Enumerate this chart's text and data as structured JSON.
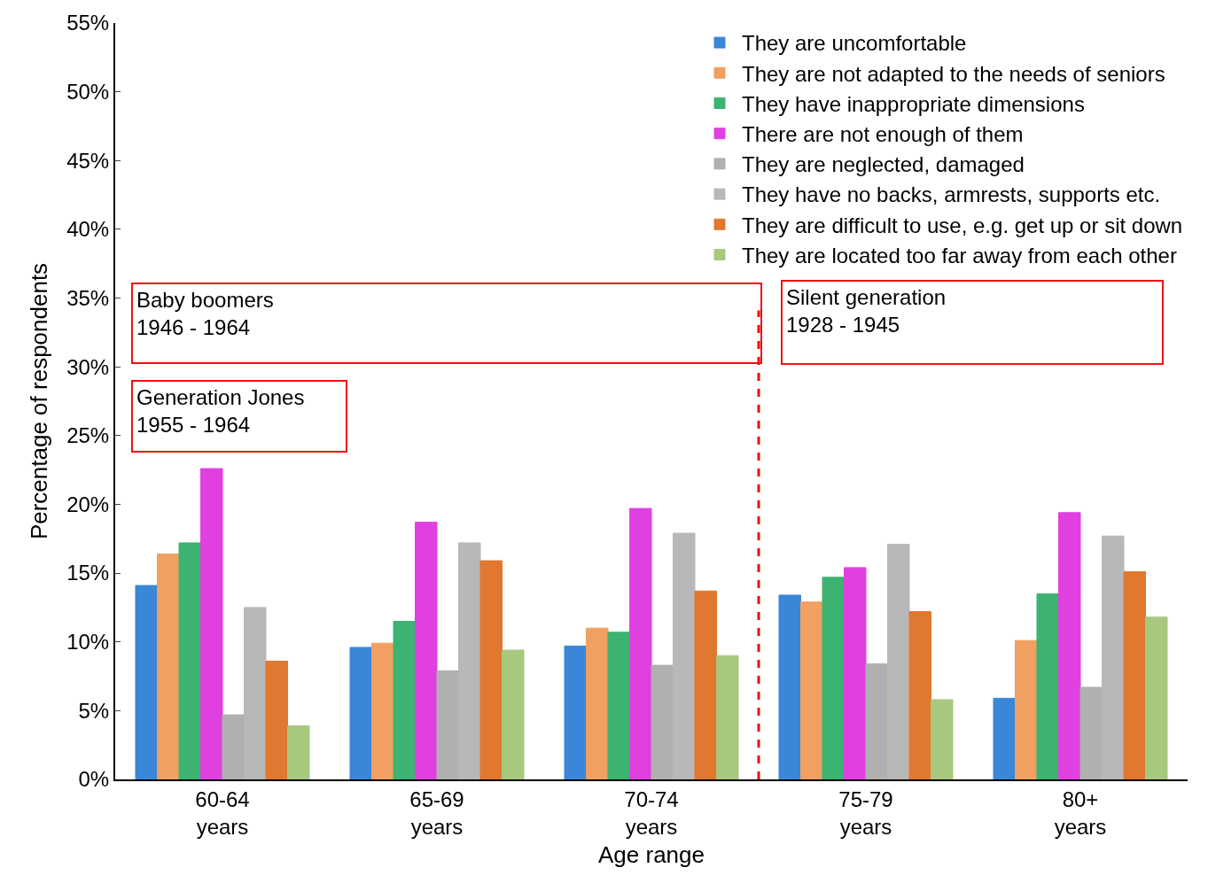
{
  "chart_data": {
    "type": "bar",
    "xlabel": "Age range",
    "ylabel": "Percentage of respondents",
    "categories": [
      "60-64\nyears",
      "65-69\nyears",
      "70-74\nyears",
      "75-79\nyears",
      "80+\nyears"
    ],
    "series": [
      {
        "name": "They are uncomfortable",
        "color": "#3a86d8",
        "values": [
          14.1,
          9.6,
          9.7,
          13.4,
          5.9
        ]
      },
      {
        "name": "They are not adapted to the needs of seniors",
        "color": "#f0a060",
        "values": [
          16.4,
          9.9,
          11.0,
          12.9,
          10.1
        ]
      },
      {
        "name": "They have inappropriate dimensions",
        "color": "#3cb371",
        "values": [
          17.2,
          11.5,
          10.7,
          14.7,
          13.5
        ]
      },
      {
        "name": "There are not enough of them",
        "color": "#e040e0",
        "values": [
          22.6,
          18.7,
          19.7,
          15.4,
          19.4
        ]
      },
      {
        "name": "They are neglected, damaged",
        "color": "#b0b0b0",
        "values": [
          4.7,
          7.9,
          8.3,
          8.4,
          6.7
        ]
      },
      {
        "name": "They have no backs, armrests, supports etc.",
        "color": "#b8b8b8",
        "values": [
          12.5,
          17.2,
          17.9,
          17.1,
          17.7
        ]
      },
      {
        "name": "They are difficult to use, e.g. get up or sit down",
        "color": "#e07830",
        "values": [
          8.6,
          15.9,
          13.7,
          12.2,
          15.1
        ]
      },
      {
        "name": "They are located too far away from each other",
        "color": "#a8c880",
        "values": [
          3.9,
          9.4,
          9.0,
          5.8,
          11.8
        ]
      }
    ],
    "ylim": [
      0,
      55
    ],
    "yticks": [
      {
        "value": 0,
        "label": "0%"
      },
      {
        "value": 5,
        "label": "5%"
      },
      {
        "value": 10,
        "label": "10%"
      },
      {
        "value": 15,
        "label": "15%"
      },
      {
        "value": 20,
        "label": "20%"
      },
      {
        "value": 25,
        "label": "25%"
      },
      {
        "value": 30,
        "label": "30%"
      },
      {
        "value": 35,
        "label": "35%"
      },
      {
        "value": 40,
        "label": "40%"
      },
      {
        "value": 45,
        "label": "45%"
      },
      {
        "value": 50,
        "label": "50%"
      },
      {
        "value": 55,
        "label": "55%"
      }
    ],
    "grid": false,
    "legend": "top right",
    "annotations": [
      "Baby boomers\n1946 - 1964",
      "Generation Jones\n1955 - 1964",
      "Silent generation\n1928 - 1945"
    ]
  }
}
